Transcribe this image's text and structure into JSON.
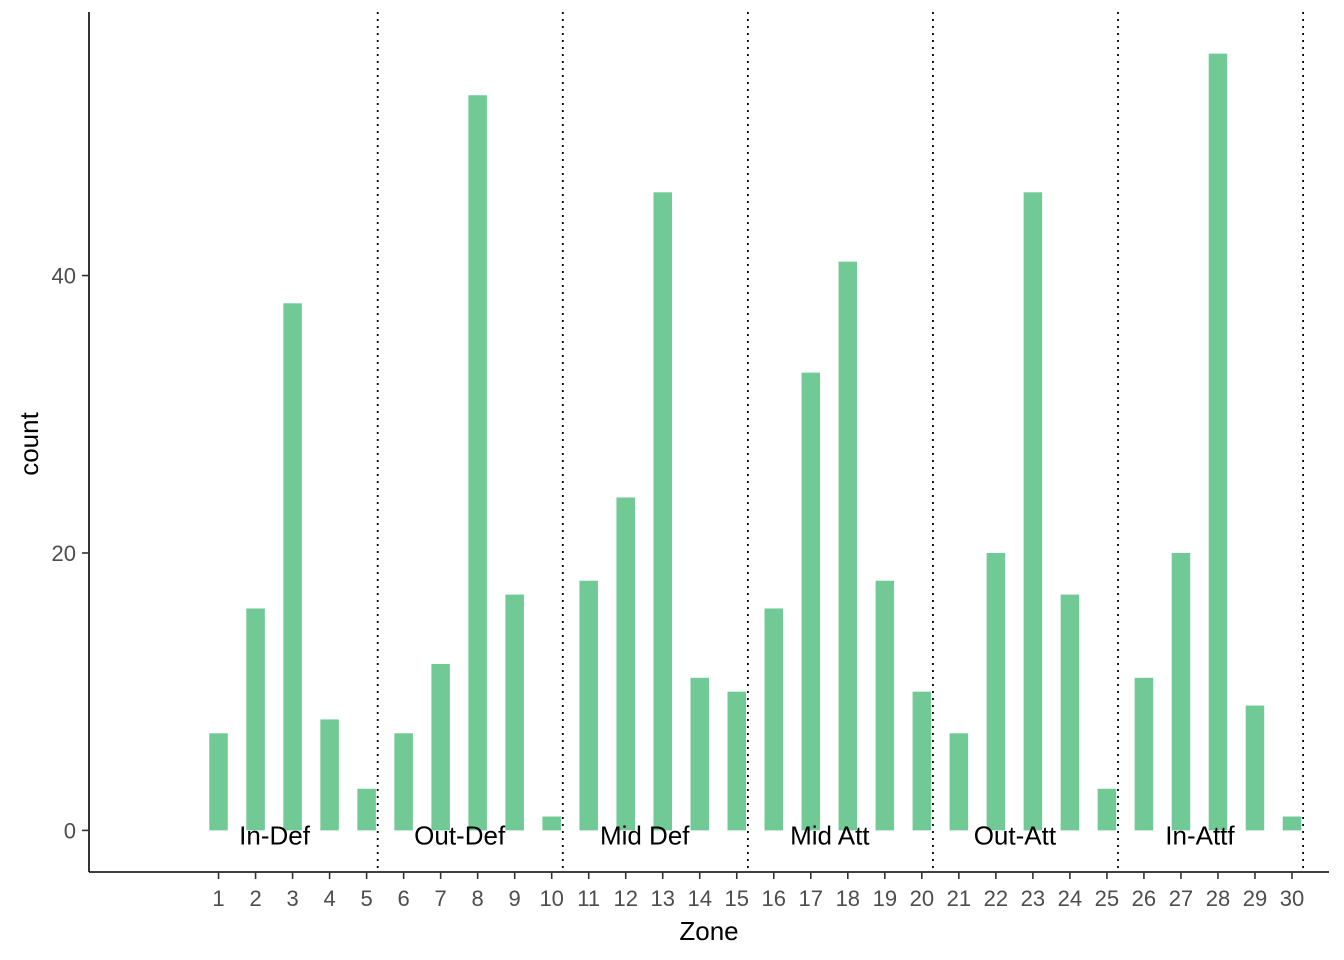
{
  "chart_data": {
    "type": "bar",
    "xlabel": "Zone",
    "ylabel": "count",
    "categories": [
      "1",
      "2",
      "3",
      "4",
      "5",
      "6",
      "7",
      "8",
      "9",
      "10",
      "11",
      "12",
      "13",
      "14",
      "15",
      "16",
      "17",
      "18",
      "19",
      "20",
      "21",
      "22",
      "23",
      "24",
      "25",
      "26",
      "27",
      "28",
      "29",
      "30"
    ],
    "values": [
      7,
      16,
      38,
      8,
      3,
      7,
      12,
      53,
      17,
      1,
      18,
      24,
      46,
      11,
      10,
      16,
      33,
      41,
      18,
      10,
      7,
      20,
      46,
      17,
      3,
      11,
      20,
      56,
      9,
      1
    ],
    "yticks": [
      0,
      20,
      40
    ],
    "ylim": [
      -3,
      59
    ],
    "xlim": [
      -2.5,
      31
    ],
    "grid": false,
    "bar_color": "#71c995",
    "group_dividers": [
      5.3,
      10.3,
      15.3,
      20.3,
      25.3,
      30.3
    ],
    "annotations": [
      {
        "text": "In-Def",
        "x": 3.0
      },
      {
        "text": "Out-Def",
        "x": 8.0
      },
      {
        "text": "Mid Def",
        "x": 13.0
      },
      {
        "text": "Mid Att",
        "x": 18.0
      },
      {
        "text": "Out-Att",
        "x": 23.0
      },
      {
        "text": "In-Attf",
        "x": 28.0
      }
    ]
  }
}
